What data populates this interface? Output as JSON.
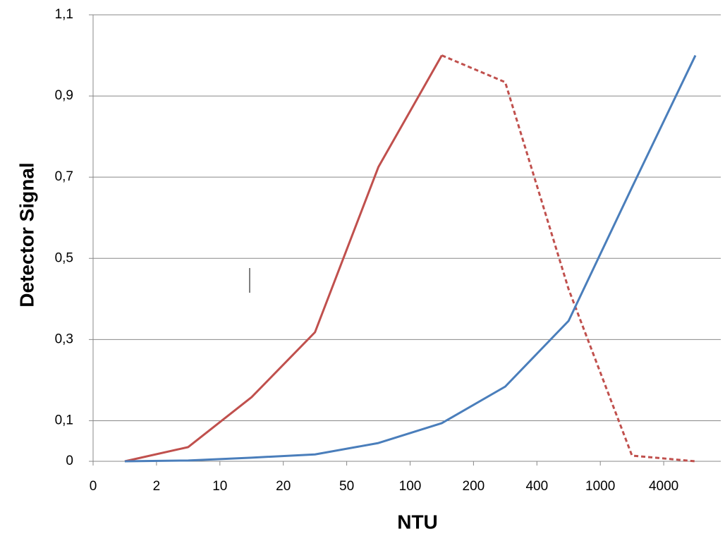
{
  "chart_data": {
    "type": "line",
    "y_label": "Detector Signal",
    "x_label": "NTU",
    "x": [
      0.5,
      1.5,
      2.5,
      3.5,
      4.5,
      5.5,
      6.5,
      7.5,
      8.5,
      9.5
    ],
    "xlim": [
      0,
      9.9
    ],
    "xticks": [
      0,
      {
        "value": 1,
        "label": "2"
      },
      {
        "value": 2,
        "label": "10"
      },
      {
        "value": 3,
        "label": "20"
      },
      {
        "value": 4,
        "label": "50"
      },
      {
        "value": 5,
        "label": "100"
      },
      {
        "value": 6,
        "label": "200"
      },
      {
        "value": 7,
        "label": "400"
      },
      {
        "value": 8,
        "label": "1000"
      },
      {
        "value": 9,
        "label": "4000"
      }
    ],
    "ylim": [
      0,
      1.1
    ],
    "yticks": [
      0,
      {
        "value": 0.1,
        "label": "0,1"
      },
      {
        "value": 0.3,
        "label": "0,3"
      },
      {
        "value": 0.5,
        "label": "0,5"
      },
      {
        "value": 0.7,
        "label": "0,7"
      },
      {
        "value": 0.9,
        "label": "0,9"
      },
      {
        "value": 1.1,
        "label": "1,1"
      }
    ],
    "grid": true,
    "series": [
      {
        "color": "#c0504d",
        "dash": false,
        "values": [
          0,
          0.035,
          0.158,
          0.318,
          0.725,
          1.0,
          null,
          null,
          null,
          null
        ]
      },
      {
        "color": "#c0504d",
        "dash": true,
        "values": [
          null,
          null,
          null,
          null,
          null,
          1.0,
          0.934,
          0.424,
          0.014,
          0
        ]
      },
      {
        "color": "#4a7ebb",
        "dash": false,
        "values": [
          0,
          0.002,
          0.009,
          0.017,
          0.045,
          0.094,
          0.184,
          0.346,
          0.675,
          1.0
        ]
      }
    ]
  }
}
